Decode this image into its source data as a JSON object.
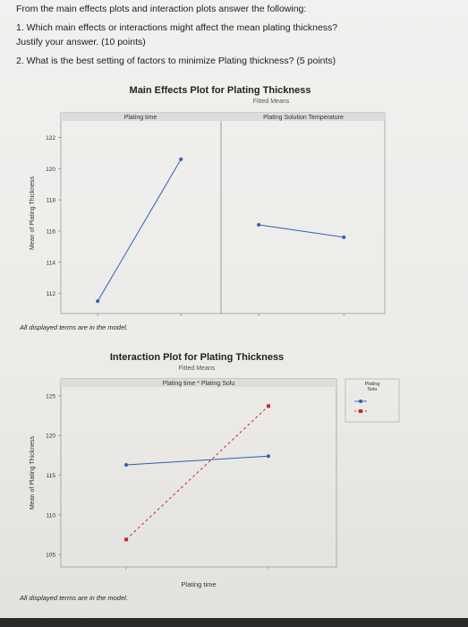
{
  "questions": {
    "intro": "From the main effects plots and interaction plots answer the following:",
    "q1_line1": "1. Which main effects or interactions might affect the mean plating thickness?",
    "q1_line2": "Justify your answer. (10 points)",
    "q2": "2. What is the best setting of factors to minimize Plating thickness? (5 points)"
  },
  "chart_data": [
    {
      "type": "line",
      "title": "Main Effects Plot for Plating Thickness",
      "subtitle": "Fitted Means",
      "ylabel": "Mean of Plating Thickness",
      "ylim": [
        111,
        123
      ],
      "yticks": [
        112,
        114,
        116,
        118,
        120,
        122
      ],
      "yticklabels": [
        "112",
        "114",
        "116",
        "118",
        "120",
        "122"
      ],
      "panels": [
        {
          "name": "Plating time",
          "x": [
            1,
            2
          ],
          "values": [
            111.5,
            120.6
          ]
        },
        {
          "name": "Plating Solution Temperature",
          "x": [
            1,
            2
          ],
          "values": [
            116.4,
            115.6
          ]
        }
      ],
      "footnote": "All displayed terms are in the model.",
      "color": "#2f5fb3"
    },
    {
      "type": "line",
      "title": "Interaction Plot for Plating Thickness",
      "subtitle": "Fitted Means",
      "panel_title": "Plating time * Plating Solu",
      "xlabel": "Plating time",
      "ylabel": "Mean of Plating Thickness",
      "ylim": [
        104,
        126
      ],
      "yticks": [
        105,
        110,
        115,
        120,
        125
      ],
      "yticklabels": [
        "105",
        "110",
        "115",
        "120",
        "125"
      ],
      "legend": {
        "title_line1": "Plating",
        "title_line2": "Solu"
      },
      "series": [
        {
          "style": "solid",
          "color": "#2f5fb3",
          "x": [
            1,
            2
          ],
          "values": [
            116.3,
            117.4
          ]
        },
        {
          "style": "dashed",
          "color": "#c8282c",
          "x": [
            1,
            2
          ],
          "values": [
            106.9,
            123.7
          ]
        }
      ],
      "footnote": "All displayed terms are in the model."
    }
  ]
}
